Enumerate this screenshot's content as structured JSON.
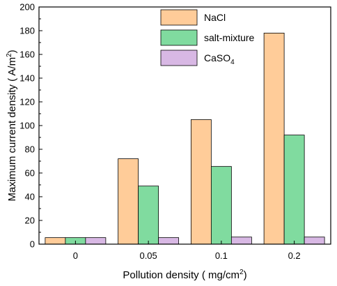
{
  "chart_data": {
    "type": "bar",
    "categories": [
      "0",
      "0.05",
      "0.1",
      "0.2"
    ],
    "series": [
      {
        "name": "NaCl",
        "color": "#FFCC99",
        "values": [
          5.5,
          72,
          105,
          178
        ]
      },
      {
        "name": "salt-mixture",
        "color": "#80DB9F",
        "values": [
          5.5,
          49,
          65.5,
          92
        ]
      },
      {
        "name": "CaSO4",
        "name_base": "CaSO",
        "name_sub": "4",
        "color": "#D8B8E4",
        "values": [
          5.5,
          5.5,
          6,
          6
        ]
      }
    ],
    "xlabel": {
      "main": "Pollution density ( mg/cm",
      "sup": "2",
      "end": ")"
    },
    "ylabel": {
      "main": "Maximum current density ( A/m",
      "sup": "2",
      "end": ")"
    },
    "ylim": [
      0,
      200
    ],
    "yticks": [
      0,
      20,
      40,
      60,
      80,
      100,
      120,
      140,
      160,
      180,
      200
    ],
    "legend_position": "top-center",
    "grid": false
  }
}
